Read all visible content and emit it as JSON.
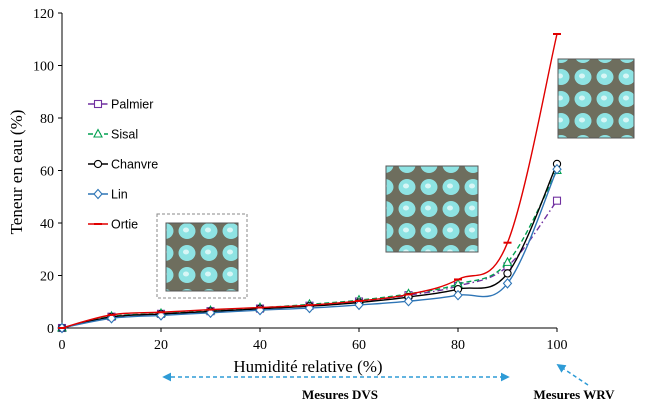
{
  "chart_data": {
    "type": "line",
    "xlabel": "Humidité relative (%)",
    "ylabel": "Teneur en eau (%)",
    "xlim": [
      0,
      100
    ],
    "ylim": [
      0,
      120
    ],
    "xticks": [
      0,
      20,
      40,
      60,
      80,
      100
    ],
    "yticks": [
      0,
      20,
      40,
      60,
      80,
      100,
      120
    ],
    "grid": false,
    "legend_position": "left",
    "x": [
      0,
      10,
      20,
      30,
      40,
      50,
      60,
      70,
      80,
      90,
      100
    ],
    "series": [
      {
        "name": "Palmier",
        "color": "#7030a0",
        "marker": "square",
        "dash": "dashdot",
        "values": [
          0,
          4.3,
          5.4,
          6.4,
          7.4,
          8.5,
          10.1,
          12.5,
          16.0,
          23.5,
          48.5
        ]
      },
      {
        "name": "Sisal",
        "color": "#00a050",
        "marker": "triangle",
        "dash": "dashed",
        "values": [
          0,
          4.4,
          5.5,
          6.6,
          7.7,
          9.0,
          10.6,
          13.0,
          16.7,
          25.0,
          60.0
        ]
      },
      {
        "name": "Chanvre",
        "color": "#000000",
        "marker": "circle",
        "dash": "solid",
        "values": [
          0,
          4.2,
          5.3,
          6.3,
          7.3,
          8.3,
          9.7,
          11.8,
          14.8,
          20.8,
          62.5
        ]
      },
      {
        "name": "Lin",
        "color": "#2e75b6",
        "marker": "diamond",
        "dash": "solid",
        "values": [
          0,
          3.7,
          4.8,
          5.8,
          6.8,
          7.6,
          8.8,
          10.2,
          12.5,
          17.0,
          60.5
        ]
      },
      {
        "name": "Ortie",
        "color": "#e00000",
        "marker": "dash",
        "dash": "solid",
        "values": [
          0,
          5.0,
          6.0,
          7.0,
          7.8,
          8.7,
          10.3,
          12.8,
          18.5,
          32.5,
          112.0
        ]
      }
    ],
    "annotations": [
      {
        "text": "Mesures DVS",
        "x_range": [
          20,
          90
        ]
      },
      {
        "text": "Mesures WRV",
        "x": 100
      }
    ]
  }
}
